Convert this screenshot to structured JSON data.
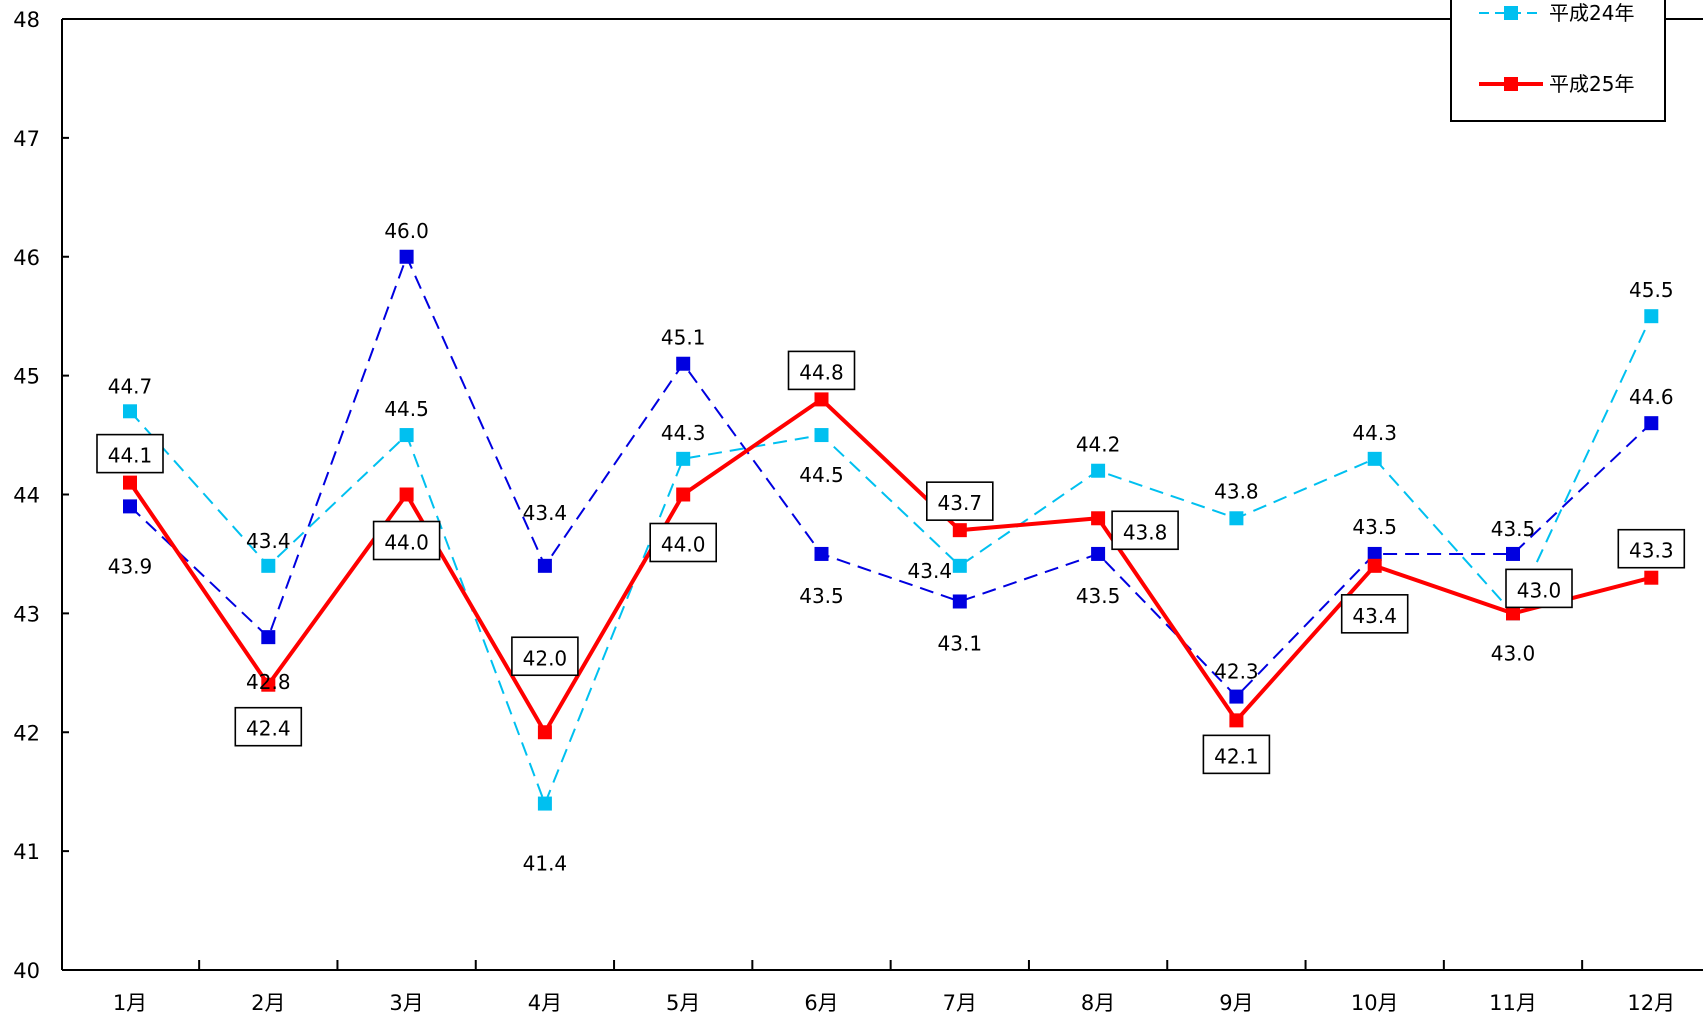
{
  "chart_data": {
    "type": "line",
    "title": "",
    "xlabel": "",
    "ylabel": "",
    "categories": [
      "1月",
      "2月",
      "3月",
      "4月",
      "5月",
      "6月",
      "7月",
      "8月",
      "9月",
      "10月",
      "11月",
      "12月"
    ],
    "ylim": [
      40,
      48
    ],
    "yticks": [
      40,
      41,
      42,
      43,
      44,
      45,
      46,
      47,
      48
    ],
    "grid": false,
    "legend": "top-right",
    "series": [
      {
        "name": "",
        "color": "#0000e0",
        "line_style": "dashed",
        "values": [
          43.9,
          42.8,
          46.0,
          43.4,
          45.1,
          43.5,
          43.1,
          43.5,
          42.3,
          43.5,
          43.5,
          44.6
        ],
        "labels": [
          "43.9",
          "42.8",
          "46.0",
          "43.4",
          "45.1",
          "43.5",
          "43.1",
          "43.5",
          "42.3",
          "43.5",
          "43.5",
          "44.6"
        ]
      },
      {
        "name": "平成24年",
        "color": "#00c0f0",
        "line_style": "dashed",
        "values": [
          44.7,
          43.4,
          44.5,
          41.4,
          44.3,
          44.5,
          43.4,
          44.2,
          43.8,
          44.3,
          43.0,
          45.5
        ],
        "labels": [
          "44.7",
          "43.4",
          "44.5",
          "41.4",
          "44.3",
          "44.5",
          "43.4",
          "44.2",
          "43.8",
          "44.3",
          "43.0",
          "45.5"
        ]
      },
      {
        "name": "平成25年",
        "color": "#ff0000",
        "line_style": "solid",
        "values": [
          44.1,
          42.4,
          44.0,
          42.0,
          44.0,
          44.8,
          43.7,
          43.8,
          42.1,
          43.4,
          43.0,
          43.3
        ],
        "labels": [
          "44.1",
          "42.4",
          "44.0",
          "42.0",
          "44.0",
          "44.8",
          "43.7",
          "43.8",
          "42.1",
          "43.4",
          "43.0",
          "43.3"
        ]
      }
    ]
  }
}
